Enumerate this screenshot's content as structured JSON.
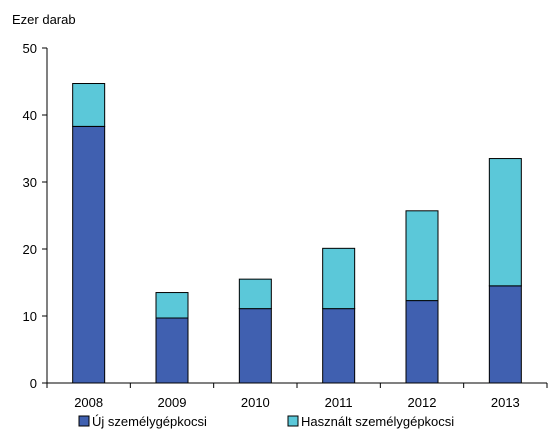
{
  "chart_data": {
    "type": "bar",
    "stacked": true,
    "y_unit_label": "Ezer darab",
    "categories": [
      "2008",
      "2009",
      "2010",
      "2011",
      "2012",
      "2013"
    ],
    "series": [
      {
        "name": "Új személygépkocsi",
        "values": [
          38.3,
          9.7,
          11.1,
          11.1,
          12.3,
          14.5
        ],
        "color": "#4060b0"
      },
      {
        "name": "Használt személygépkocsi",
        "values": [
          6.4,
          3.8,
          4.4,
          9.0,
          13.4,
          19.0
        ],
        "color": "#5bc8d9"
      }
    ],
    "ylim": [
      0,
      50
    ],
    "yticks": [
      0,
      10,
      20,
      30,
      40,
      50
    ],
    "grid": false,
    "legend_position": "bottom"
  }
}
